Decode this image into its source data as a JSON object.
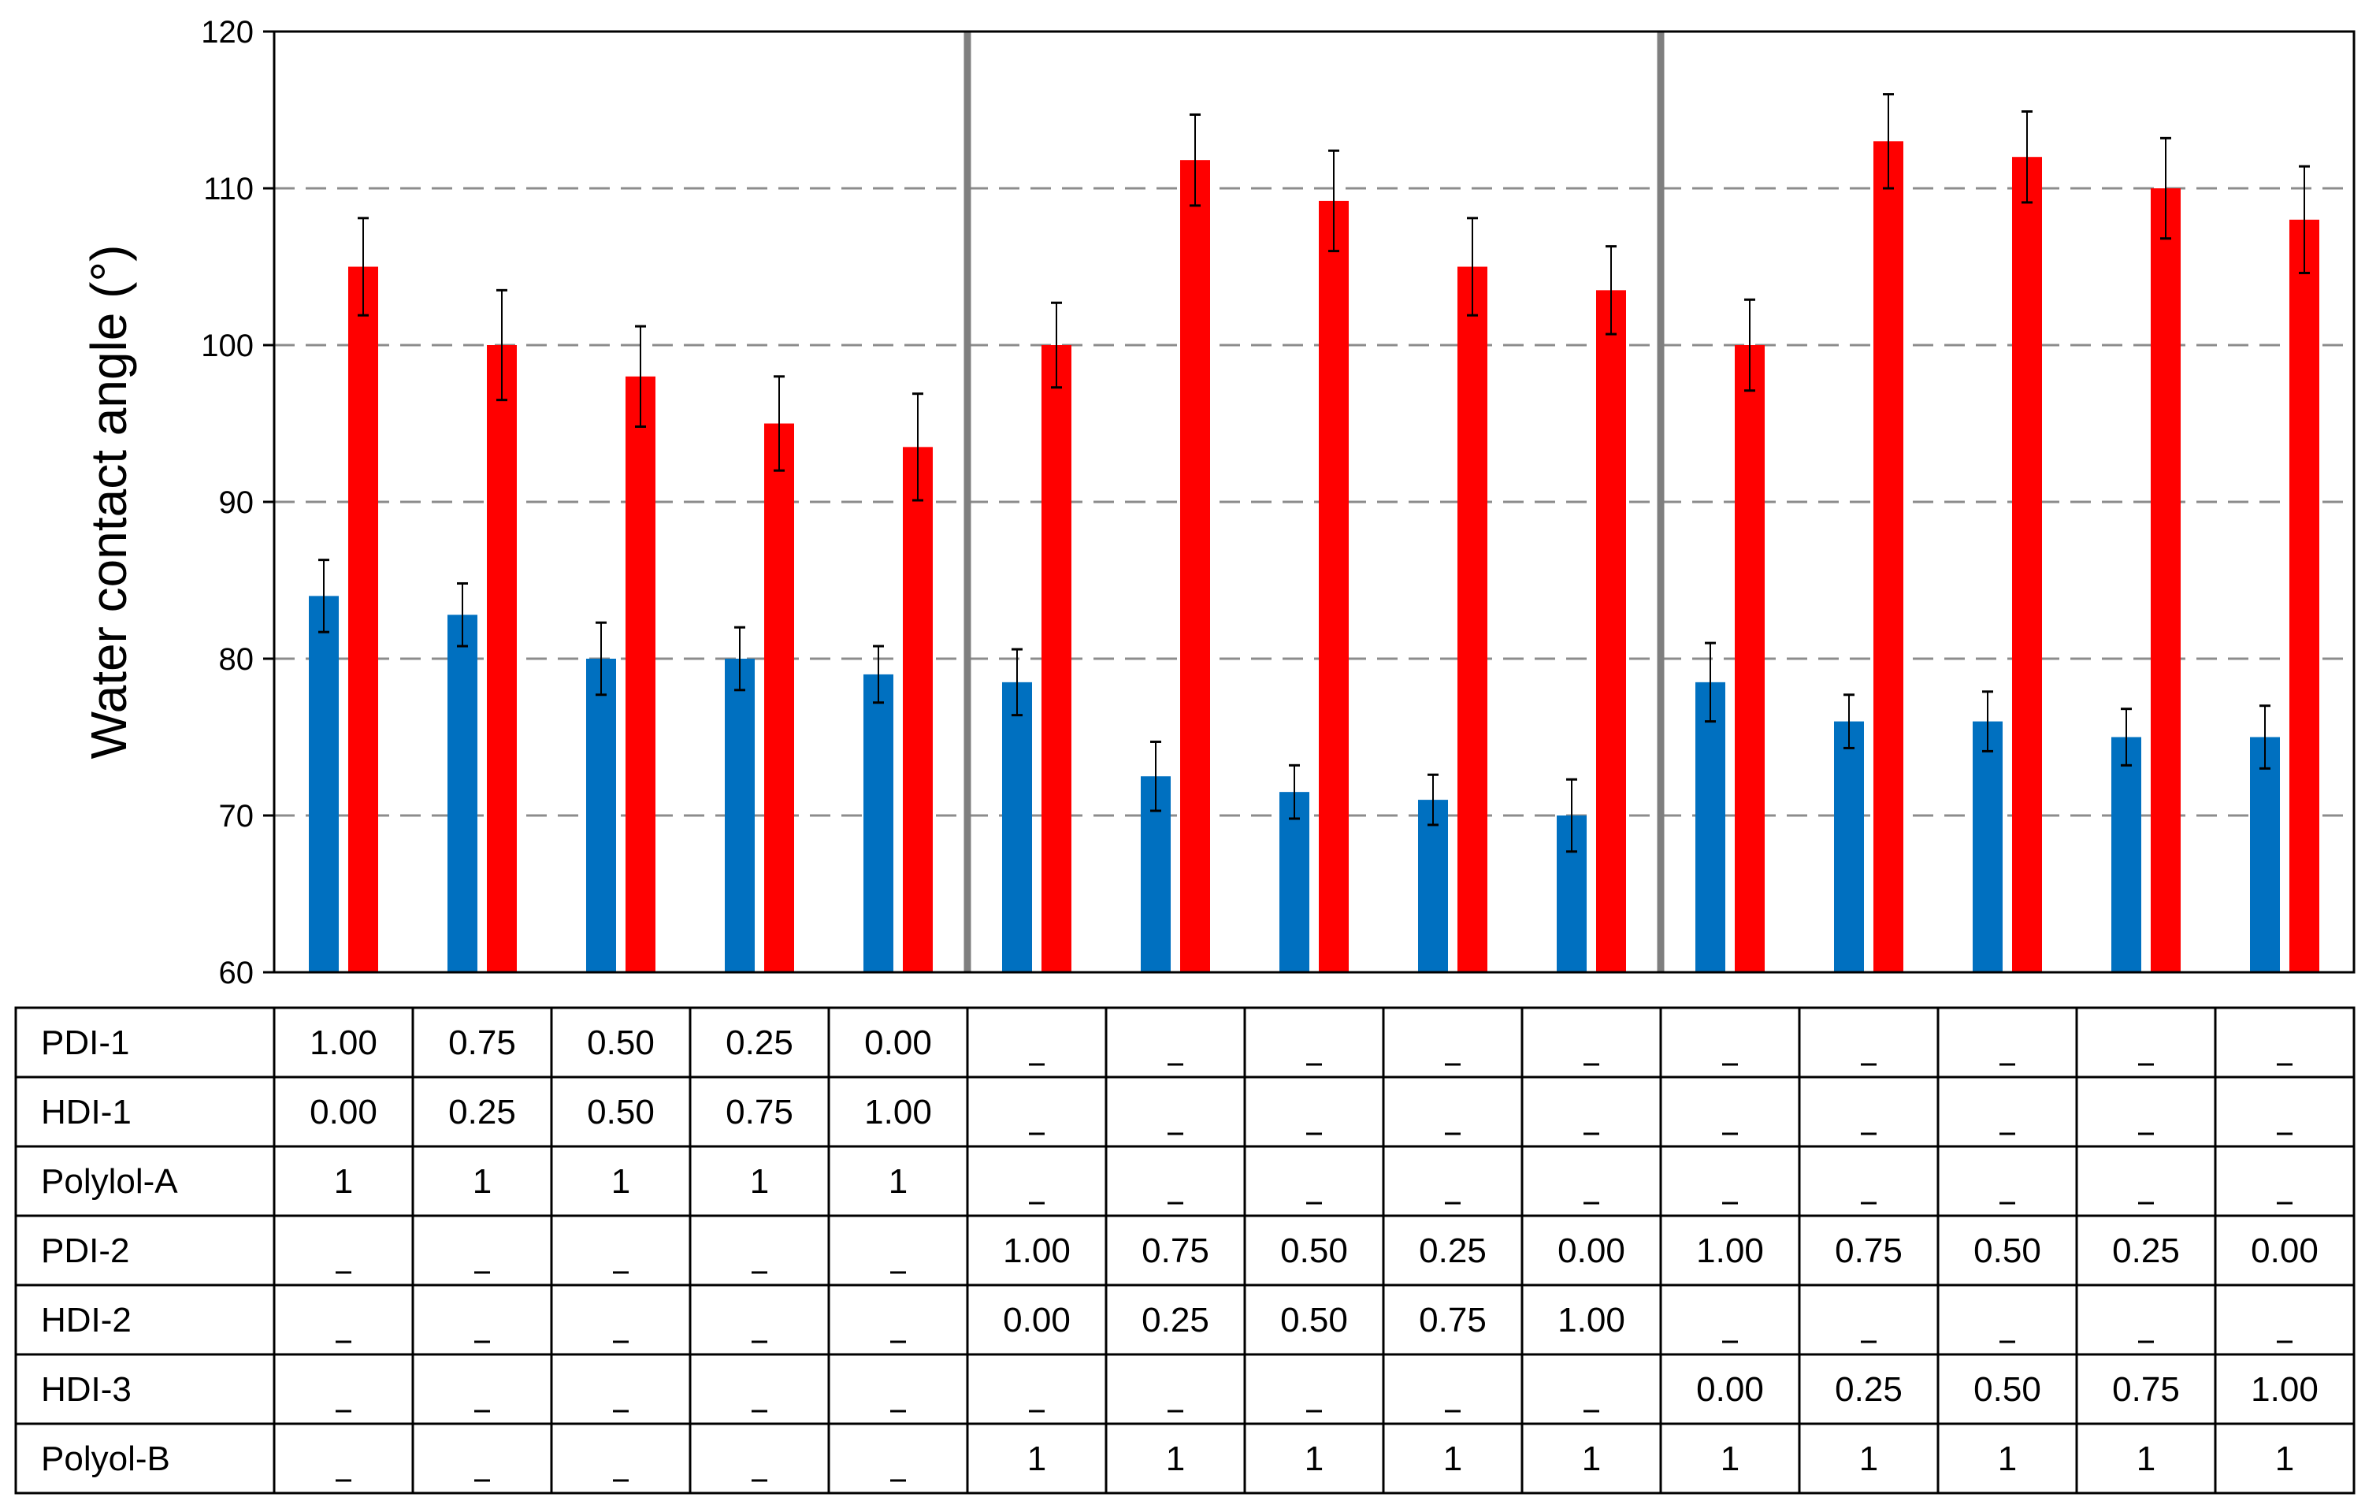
{
  "chart_data": {
    "type": "bar",
    "title": "",
    "xlabel": "",
    "ylabel": "Water contact angle (°)",
    "ylim": [
      60,
      120
    ],
    "yticks": [
      60,
      70,
      80,
      90,
      100,
      110,
      120
    ],
    "grid": true,
    "legend": "none",
    "group_dividers_after": [
      5,
      10
    ],
    "series": [
      {
        "color": "#0070C0",
        "values": [
          84,
          82.8,
          80,
          80,
          79,
          78.5,
          72.5,
          71.5,
          71,
          70,
          78.5,
          76,
          76,
          75,
          75
        ],
        "errors": [
          2.3,
          2.0,
          2.3,
          2.0,
          1.8,
          2.1,
          2.2,
          1.7,
          1.6,
          2.3,
          2.5,
          1.7,
          1.9,
          1.8,
          2.0
        ]
      },
      {
        "color": "#FF0000",
        "values": [
          105,
          100,
          98,
          95,
          93.5,
          100,
          111.8,
          109.2,
          105,
          103.5,
          100,
          113,
          112,
          110,
          108
        ],
        "errors": [
          3.1,
          3.5,
          3.2,
          3.0,
          3.4,
          2.7,
          2.9,
          3.2,
          3.1,
          2.8,
          2.9,
          3.0,
          2.9,
          3.2,
          3.4
        ]
      }
    ],
    "table": {
      "rows": [
        {
          "label": "PDI-1",
          "cells": [
            "1.00",
            "0.75",
            "0.50",
            "0.25",
            "0.00",
            "_",
            "_",
            "_",
            "_",
            "_",
            "_",
            "_",
            "_",
            "_",
            "_"
          ]
        },
        {
          "label": "HDI-1",
          "cells": [
            "0.00",
            "0.25",
            "0.50",
            "0.75",
            "1.00",
            "_",
            "_",
            "_",
            "_",
            "_",
            "_",
            "_",
            "_",
            "_",
            "_"
          ]
        },
        {
          "label": "Polylol-A",
          "cells": [
            "1",
            "1",
            "1",
            "1",
            "1",
            "_",
            "_",
            "_",
            "_",
            "_",
            "_",
            "_",
            "_",
            "_",
            "_"
          ]
        },
        {
          "label": "PDI-2",
          "cells": [
            "_",
            "_",
            "_",
            "_",
            "_",
            "1.00",
            "0.75",
            "0.50",
            "0.25",
            "0.00",
            "1.00",
            "0.75",
            "0.50",
            "0.25",
            "0.00"
          ]
        },
        {
          "label": "HDI-2",
          "cells": [
            "_",
            "_",
            "_",
            "_",
            "_",
            "0.00",
            "0.25",
            "0.50",
            "0.75",
            "1.00",
            "_",
            "_",
            "_",
            "_",
            "_"
          ]
        },
        {
          "label": "HDI-3",
          "cells": [
            "_",
            "_",
            "_",
            "_",
            "_",
            "_",
            "_",
            "_",
            "_",
            "_",
            "0.00",
            "0.25",
            "0.50",
            "0.75",
            "1.00"
          ]
        },
        {
          "label": "Polyol-B",
          "cells": [
            "_",
            "_",
            "_",
            "_",
            "_",
            "1",
            "1",
            "1",
            "1",
            "1",
            "1",
            "1",
            "1",
            "1",
            "1"
          ]
        }
      ]
    }
  }
}
